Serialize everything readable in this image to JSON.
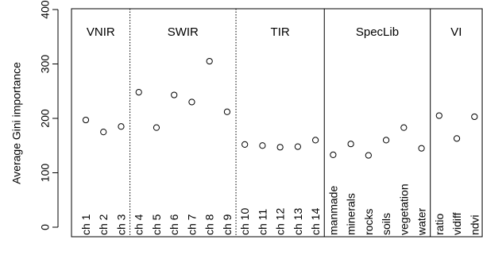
{
  "chart_data": {
    "type": "scatter",
    "ylabel": "Average Gini importance",
    "ylim": [
      0,
      400
    ],
    "yticks": [
      0,
      100,
      200,
      300,
      400
    ],
    "groups": [
      {
        "label": "VNIR",
        "divider_after": "dotted"
      },
      {
        "label": "SWIR",
        "divider_after": "dotted"
      },
      {
        "label": "TIR",
        "divider_after": "solid"
      },
      {
        "label": "SpecLib",
        "divider_after": "solid"
      },
      {
        "label": "VI",
        "divider_after": "none"
      }
    ],
    "points": [
      {
        "category": "ch 1",
        "group": "VNIR",
        "value": 197
      },
      {
        "category": "ch 2",
        "group": "VNIR",
        "value": 175
      },
      {
        "category": "ch 3",
        "group": "VNIR",
        "value": 185
      },
      {
        "category": "ch 4",
        "group": "SWIR",
        "value": 248
      },
      {
        "category": "ch 5",
        "group": "SWIR",
        "value": 183
      },
      {
        "category": "ch 6",
        "group": "SWIR",
        "value": 243
      },
      {
        "category": "ch 7",
        "group": "SWIR",
        "value": 230
      },
      {
        "category": "ch 8",
        "group": "SWIR",
        "value": 305
      },
      {
        "category": "ch 9",
        "group": "SWIR",
        "value": 212
      },
      {
        "category": "ch 10",
        "group": "TIR",
        "value": 152
      },
      {
        "category": "ch 11",
        "group": "TIR",
        "value": 150
      },
      {
        "category": "ch 12",
        "group": "TIR",
        "value": 147
      },
      {
        "category": "ch 13",
        "group": "TIR",
        "value": 148
      },
      {
        "category": "ch 14",
        "group": "TIR",
        "value": 160
      },
      {
        "category": "manmade",
        "group": "SpecLib",
        "value": 133
      },
      {
        "category": "minerals",
        "group": "SpecLib",
        "value": 153
      },
      {
        "category": "rocks",
        "group": "SpecLib",
        "value": 132
      },
      {
        "category": "soils",
        "group": "SpecLib",
        "value": 160
      },
      {
        "category": "vegetation",
        "group": "SpecLib",
        "value": 183
      },
      {
        "category": "water",
        "group": "SpecLib",
        "value": 145
      },
      {
        "category": "ratio",
        "group": "VI",
        "value": 205
      },
      {
        "category": "vidiff",
        "group": "VI",
        "value": 163
      },
      {
        "category": "ndvi",
        "group": "VI",
        "value": 203
      }
    ],
    "marker": "open-circle",
    "grid": false
  }
}
